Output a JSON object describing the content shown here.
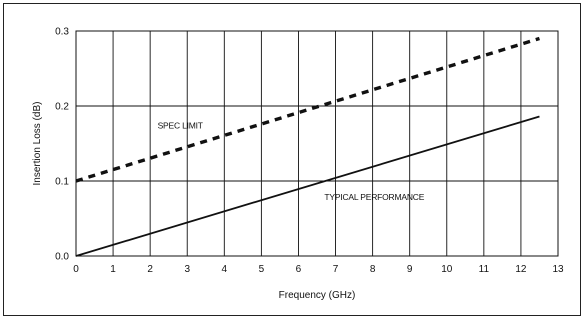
{
  "chart_data": {
    "type": "line",
    "title": "",
    "xlabel": "Frequency (GHz)",
    "ylabel": "Insertion Loss (dB)",
    "xlim": [
      0,
      13
    ],
    "ylim": [
      0,
      0.3
    ],
    "x_ticks": [
      "0",
      "1",
      "2",
      "3",
      "4",
      "5",
      "6",
      "7",
      "8",
      "9",
      "10",
      "11",
      "12",
      "13"
    ],
    "y_ticks": [
      "0.0",
      "0.1",
      "0.2",
      "0.3"
    ],
    "grid": "on",
    "legend": "none",
    "series": [
      {
        "name": "SPEC LIMIT",
        "style": "dashed",
        "color": "#111111",
        "points": [
          [
            0,
            0.1
          ],
          [
            12.5,
            0.29
          ]
        ]
      },
      {
        "name": "TYPICAL PERFORMANCE",
        "style": "solid",
        "color": "#111111",
        "points": [
          [
            0,
            0.0
          ],
          [
            12.5,
            0.186
          ]
        ]
      }
    ],
    "annotations": [
      {
        "text": "SPEC LIMIT",
        "x": 2.2,
        "y": 0.17
      },
      {
        "text": "TYPICAL PERFORMANCE",
        "x": 6.7,
        "y": 0.075
      }
    ]
  }
}
